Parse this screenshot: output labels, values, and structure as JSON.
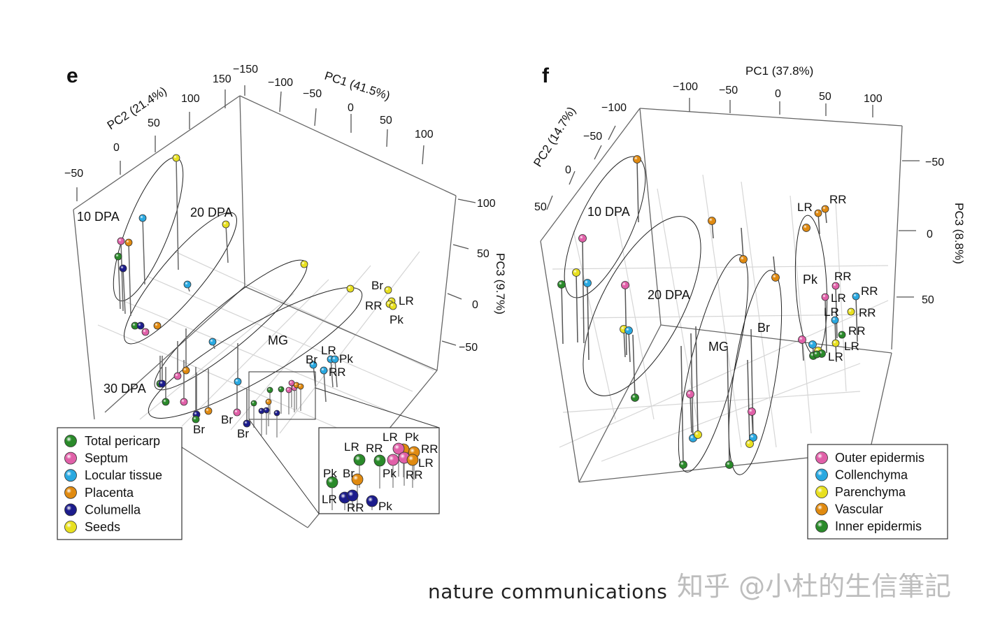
{
  "chart_data": [
    {
      "type": "scatter3d",
      "panel": "e",
      "axes": {
        "x": {
          "title": "PC1 (41.5%)",
          "ticks": [
            "−150",
            "−100",
            "−50",
            "0",
            "50",
            "100"
          ]
        },
        "y": {
          "title": "PC2 (21.4%)",
          "ticks": [
            "150",
            "100",
            "50",
            "0",
            "−50"
          ]
        },
        "z": {
          "title": "PC3 (9.7%)",
          "ticks": [
            "100",
            "50",
            "0",
            "−50"
          ]
        }
      },
      "groups": [
        "10 DPA",
        "20 DPA",
        "MG",
        "30 DPA"
      ],
      "legend": [
        {
          "name": "Total pericarp",
          "color": "#2a8a2a"
        },
        {
          "name": "Septum",
          "color": "#e060a8"
        },
        {
          "name": "Locular tissue",
          "color": "#29a8e0"
        },
        {
          "name": "Placenta",
          "color": "#e08a10"
        },
        {
          "name": "Columella",
          "color": "#1c1c8c"
        },
        {
          "name": "Seeds",
          "color": "#e8e020"
        }
      ],
      "points": [
        {
          "tissue": "Seeds",
          "stage": "10 DPA",
          "label": ""
        },
        {
          "tissue": "Locular tissue",
          "stage": "10 DPA",
          "label": ""
        },
        {
          "tissue": "Septum",
          "stage": "10 DPA",
          "label": ""
        },
        {
          "tissue": "Placenta",
          "stage": "10 DPA",
          "label": ""
        },
        {
          "tissue": "Total pericarp",
          "stage": "10 DPA",
          "label": ""
        },
        {
          "tissue": "Columella",
          "stage": "10 DPA",
          "label": ""
        },
        {
          "tissue": "Seeds",
          "stage": "20 DPA",
          "label": ""
        },
        {
          "tissue": "Locular tissue",
          "stage": "20 DPA",
          "label": ""
        },
        {
          "tissue": "Total pericarp",
          "stage": "20 DPA",
          "label": ""
        },
        {
          "tissue": "Columella",
          "stage": "20 DPA",
          "label": ""
        },
        {
          "tissue": "Septum",
          "stage": "20 DPA",
          "label": ""
        },
        {
          "tissue": "Placenta",
          "stage": "20 DPA",
          "label": ""
        },
        {
          "tissue": "Seeds",
          "stage": "MG",
          "label": ""
        },
        {
          "tissue": "Locular tissue",
          "stage": "MG",
          "label": ""
        },
        {
          "tissue": "Total pericarp",
          "stage": "30 DPA",
          "label": ""
        },
        {
          "tissue": "Columella",
          "stage": "30 DPA",
          "label": ""
        },
        {
          "tissue": "Septum",
          "stage": "MG",
          "label": ""
        },
        {
          "tissue": "Placenta",
          "stage": "MG",
          "label": ""
        },
        {
          "tissue": "Seeds",
          "stage": "Br",
          "label": ""
        },
        {
          "tissue": "Total pericarp",
          "stage": "MG",
          "label": ""
        },
        {
          "tissue": "Septum",
          "stage": "MG",
          "label": ""
        },
        {
          "tissue": "Placenta",
          "stage": "MG",
          "label": ""
        },
        {
          "tissue": "Columella",
          "stage": "MG",
          "label": ""
        },
        {
          "tissue": "Total pericarp",
          "stage": "Br",
          "label": "Br"
        },
        {
          "tissue": "Septum",
          "stage": "Br",
          "label": "Br"
        },
        {
          "tissue": "Columella",
          "stage": "Br",
          "label": "Br"
        },
        {
          "tissue": "Locular tissue",
          "stage": "MG",
          "label": ""
        },
        {
          "tissue": "Locular tissue",
          "stage": "Br",
          "label": "Br"
        },
        {
          "tissue": "Locular tissue",
          "stage": "LR",
          "label": "LR"
        },
        {
          "tissue": "Locular tissue",
          "stage": "Pk",
          "label": "Pk"
        },
        {
          "tissue": "Locular tissue",
          "stage": "RR",
          "label": "RR"
        },
        {
          "tissue": "Seeds",
          "stage": "Br",
          "label": "Br"
        },
        {
          "tissue": "Seeds",
          "stage": "LR",
          "label": "LR"
        },
        {
          "tissue": "Seeds",
          "stage": "RR",
          "label": "RR"
        },
        {
          "tissue": "Seeds",
          "stage": "Pk",
          "label": "Pk"
        }
      ],
      "inset_points": [
        {
          "tissue": "Total pericarp",
          "label": "Pk"
        },
        {
          "tissue": "Total pericarp",
          "label": "LR"
        },
        {
          "tissue": "Total pericarp",
          "label": "RR"
        },
        {
          "tissue": "Placenta",
          "label": "Br"
        },
        {
          "tissue": "Septum",
          "label": "Pk"
        },
        {
          "tissue": "Placenta",
          "label": "RR"
        },
        {
          "tissue": "Placenta",
          "label": "Pk"
        },
        {
          "tissue": "Septum",
          "label": "LR"
        },
        {
          "tissue": "Septum",
          "label": "RR"
        },
        {
          "tissue": "Placenta",
          "label": "LR"
        },
        {
          "tissue": "Columella",
          "label": "LR"
        },
        {
          "tissue": "Columella",
          "label": "RR"
        },
        {
          "tissue": "Columella",
          "label": "Pk"
        }
      ]
    },
    {
      "type": "scatter3d",
      "panel": "f",
      "axes": {
        "x": {
          "title": "PC1 (37.8%)",
          "ticks": [
            "−100",
            "−50",
            "0",
            "50",
            "100"
          ]
        },
        "y": {
          "title": "PC2 (14.7%)",
          "ticks": [
            "−100",
            "−50",
            "0",
            "50"
          ]
        },
        "z": {
          "title": "PC3 (8.8%)",
          "ticks": [
            "−50",
            "0",
            "50"
          ]
        }
      },
      "groups": [
        "10 DPA",
        "20 DPA",
        "MG",
        "Br",
        "Pk"
      ],
      "legend": [
        {
          "name": "Outer epidermis",
          "color": "#e060a8"
        },
        {
          "name": "Collenchyma",
          "color": "#29a8e0"
        },
        {
          "name": "Parenchyma",
          "color": "#e8e020"
        },
        {
          "name": "Vascular",
          "color": "#e08a10"
        },
        {
          "name": "Inner epidermis",
          "color": "#2a8a2a"
        }
      ],
      "points": [
        {
          "tissue": "Vascular",
          "stage": "10 DPA",
          "label": ""
        },
        {
          "tissue": "Outer epidermis",
          "stage": "10 DPA",
          "label": ""
        },
        {
          "tissue": "Parenchyma",
          "stage": "10 DPA",
          "label": ""
        },
        {
          "tissue": "Collenchyma",
          "stage": "10 DPA",
          "label": ""
        },
        {
          "tissue": "Inner epidermis",
          "stage": "10 DPA",
          "label": ""
        },
        {
          "tissue": "Vascular",
          "stage": "20 DPA",
          "label": ""
        },
        {
          "tissue": "Outer epidermis",
          "stage": "20 DPA",
          "label": ""
        },
        {
          "tissue": "Parenchyma",
          "stage": "20 DPA",
          "label": ""
        },
        {
          "tissue": "Collenchyma",
          "stage": "20 DPA",
          "label": ""
        },
        {
          "tissue": "Inner epidermis",
          "stage": "20 DPA",
          "label": ""
        },
        {
          "tissue": "Vascular",
          "stage": "MG",
          "label": ""
        },
        {
          "tissue": "Outer epidermis",
          "stage": "MG",
          "label": ""
        },
        {
          "tissue": "Collenchyma",
          "stage": "MG",
          "label": ""
        },
        {
          "tissue": "Parenchyma",
          "stage": "MG",
          "label": ""
        },
        {
          "tissue": "Inner epidermis",
          "stage": "MG",
          "label": ""
        },
        {
          "tissue": "Vascular",
          "stage": "Br",
          "label": ""
        },
        {
          "tissue": "Outer epidermis",
          "stage": "Br",
          "label": ""
        },
        {
          "tissue": "Collenchyma",
          "stage": "Br",
          "label": ""
        },
        {
          "tissue": "Parenchyma",
          "stage": "Br",
          "label": ""
        },
        {
          "tissue": "Inner epidermis",
          "stage": "Br",
          "label": ""
        },
        {
          "tissue": "Vascular",
          "stage": "Pk",
          "label": ""
        },
        {
          "tissue": "Vascular",
          "stage": "LR",
          "label": "LR"
        },
        {
          "tissue": "Vascular",
          "stage": "RR",
          "label": "RR"
        },
        {
          "tissue": "Outer epidermis",
          "stage": "Pk",
          "label": ""
        },
        {
          "tissue": "Collenchyma",
          "stage": "Pk",
          "label": ""
        },
        {
          "tissue": "Parenchyma",
          "stage": "Pk",
          "label": ""
        },
        {
          "tissue": "Inner epidermis",
          "stage": "Pk",
          "label": ""
        },
        {
          "tissue": "Inner epidermis",
          "stage": "Pk",
          "label": ""
        },
        {
          "tissue": "Outer epidermis",
          "stage": "RR",
          "label": "RR"
        },
        {
          "tissue": "Outer epidermis",
          "stage": "LR",
          "label": "LR"
        },
        {
          "tissue": "Collenchyma",
          "stage": "RR",
          "label": "RR"
        },
        {
          "tissue": "Collenchyma",
          "stage": "LR",
          "label": "LR"
        },
        {
          "tissue": "Parenchyma",
          "stage": "RR",
          "label": "RR"
        },
        {
          "tissue": "Inner epidermis",
          "stage": "RR",
          "label": "RR"
        },
        {
          "tissue": "Parenchyma",
          "stage": "LR",
          "label": "LR"
        },
        {
          "tissue": "Inner epidermis",
          "stage": "LR",
          "label": "LR"
        }
      ]
    }
  ],
  "footer": {
    "journal": "nature communications",
    "watermark": "知乎 @小杜的生信筆記"
  }
}
